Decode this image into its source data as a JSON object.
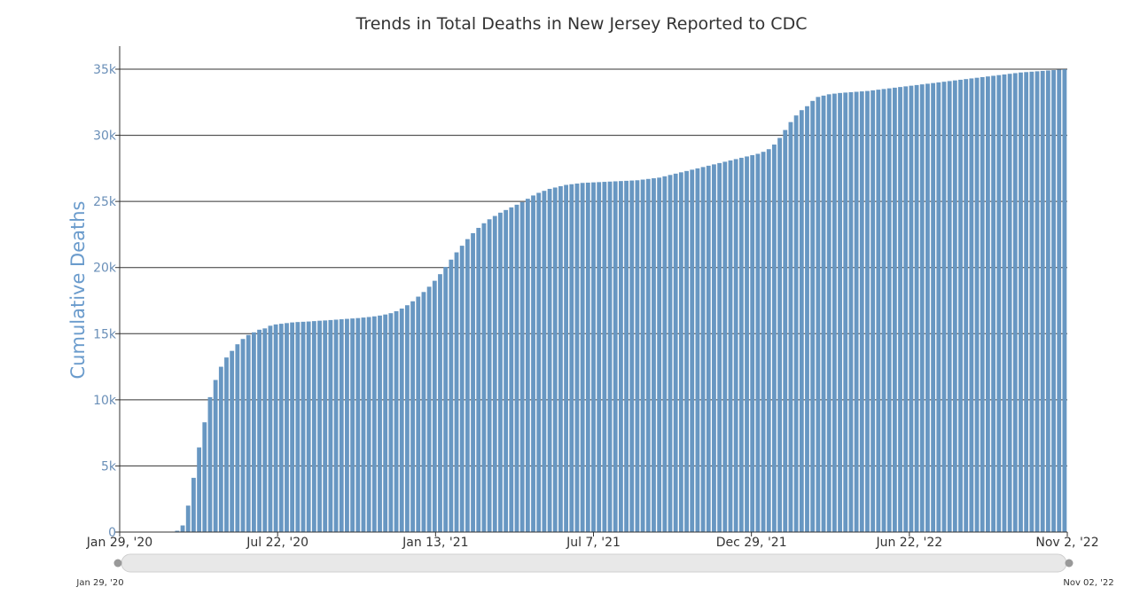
{
  "chart_data": {
    "type": "bar",
    "title": "Trends in Total Deaths in New Jersey Reported to CDC",
    "ylabel": "Cumulative Deaths",
    "ylim": [
      0,
      35000
    ],
    "yticks": [
      0,
      5000,
      10000,
      15000,
      20000,
      25000,
      30000,
      35000
    ],
    "ytick_labels": [
      "0",
      "5k",
      "10k",
      "15k",
      "20k",
      "25k",
      "30k",
      "35k"
    ],
    "xtick_labels": [
      "Jan 29, '20",
      "Jul 22, '20",
      "Jan 13, '21",
      "Jul 7, '21",
      "Dec 29, '21",
      "Jun 22, '22",
      "Nov 2, '22"
    ],
    "x_start": "2020-01-29",
    "x_end": "2022-11-02",
    "bar_interval": "weekly",
    "grid": true,
    "color": "#6897c2",
    "series": [
      {
        "values": [
          0,
          0,
          0,
          0,
          0,
          0,
          0,
          0,
          0,
          0,
          100,
          500,
          2000,
          4100,
          6400,
          8300,
          10200,
          11500,
          12500,
          13200,
          13700,
          14200,
          14600,
          14900,
          15100,
          15300,
          15400,
          15600,
          15700,
          15750,
          15800,
          15850,
          15880,
          15900,
          15920,
          15950,
          15980,
          16000,
          16030,
          16060,
          16090,
          16120,
          16150,
          16180,
          16220,
          16260,
          16310,
          16370,
          16450,
          16550,
          16700,
          16900,
          17150,
          17450,
          17800,
          18150,
          18550,
          19000,
          19500,
          20050,
          20600,
          21150,
          21650,
          22150,
          22600,
          23000,
          23350,
          23650,
          23900,
          24150,
          24350,
          24550,
          24750,
          24950,
          25200,
          25450,
          25650,
          25800,
          25950,
          26050,
          26150,
          26250,
          26300,
          26350,
          26400,
          26420,
          26440,
          26460,
          26480,
          26500,
          26520,
          26540,
          26560,
          26580,
          26600,
          26650,
          26700,
          26750,
          26800,
          26900,
          27000,
          27100,
          27200,
          27300,
          27400,
          27500,
          27600,
          27700,
          27800,
          27900,
          28000,
          28100,
          28200,
          28300,
          28400,
          28500,
          28600,
          28750,
          28950,
          29300,
          29800,
          30400,
          31000,
          31500,
          31900,
          32200,
          32600,
          32900,
          33000,
          33100,
          33150,
          33200,
          33230,
          33260,
          33290,
          33320,
          33350,
          33400,
          33450,
          33500,
          33550,
          33600,
          33650,
          33700,
          33750,
          33800,
          33850,
          33900,
          33950,
          34000,
          34050,
          34100,
          34150,
          34200,
          34250,
          34300,
          34350,
          34400,
          34450,
          34500,
          34550,
          34600,
          34650,
          34700,
          34750,
          34780,
          34810,
          34840,
          34870,
          34900,
          34930,
          34960,
          34990
        ]
      }
    ]
  },
  "range_selector": {
    "start_label": "Jan 29, '20",
    "end_label": "Nov 02, '22"
  }
}
